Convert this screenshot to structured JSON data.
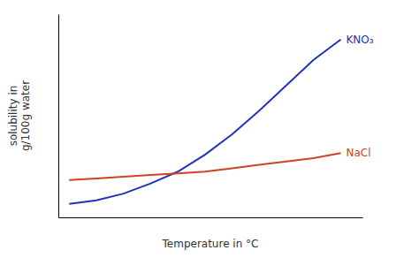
{
  "chart_data": {
    "type": "line",
    "x_label": "Temperature in °C",
    "y_label": "solubility in\ng/100g water",
    "x": [
      0,
      0.1,
      0.2,
      0.3,
      0.4,
      0.5,
      0.6,
      0.7,
      0.8,
      0.9,
      1.0
    ],
    "series": [
      {
        "name": "KNO₃",
        "color": "#2233bb",
        "values": [
          0.03,
          0.05,
          0.09,
          0.15,
          0.22,
          0.32,
          0.44,
          0.58,
          0.73,
          0.88,
          1.0
        ]
      },
      {
        "name": "NaCl",
        "color": "#cc4422",
        "values": [
          0.17,
          0.18,
          0.19,
          0.2,
          0.21,
          0.22,
          0.24,
          0.26,
          0.28,
          0.3,
          0.33
        ]
      }
    ],
    "xlim": [
      -0.04,
      1.08
    ],
    "ylim": [
      -0.05,
      1.15
    ],
    "tick_labels": false
  }
}
